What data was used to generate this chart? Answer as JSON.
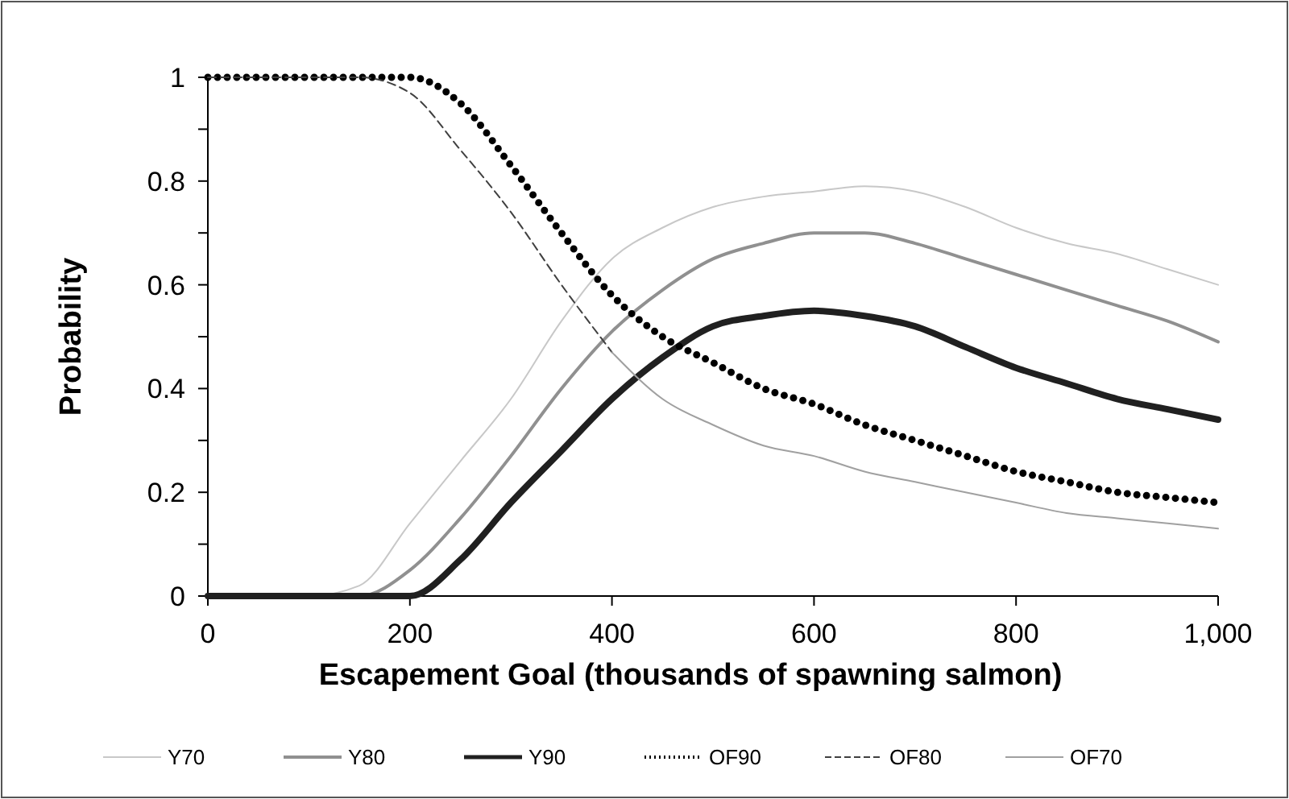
{
  "chart_data": {
    "type": "line",
    "xlabel": "Escapement Goal (thousands of spawning salmon)",
    "ylabel": "Probability",
    "x": [
      0,
      50,
      100,
      150,
      200,
      250,
      300,
      350,
      400,
      450,
      500,
      550,
      600,
      650,
      700,
      750,
      800,
      850,
      900,
      950,
      1000
    ],
    "series": [
      {
        "name": "Y70",
        "color": "#c8c8c8",
        "line_style": "solid",
        "values": [
          0,
          0,
          0,
          0.02,
          0.14,
          0.26,
          0.38,
          0.53,
          0.65,
          0.71,
          0.75,
          0.77,
          0.78,
          0.79,
          0.78,
          0.75,
          0.71,
          0.68,
          0.66,
          0.63,
          0.6
        ]
      },
      {
        "name": "Y80",
        "color": "#909090",
        "line_style": "solid",
        "values": [
          0,
          0,
          0,
          0,
          0.05,
          0.15,
          0.27,
          0.4,
          0.51,
          0.59,
          0.65,
          0.68,
          0.7,
          0.7,
          0.68,
          0.65,
          0.62,
          0.59,
          0.56,
          0.53,
          0.49
        ]
      },
      {
        "name": "Y90",
        "color": "#202020",
        "line_style": "solid",
        "values": [
          0,
          0,
          0,
          0,
          0,
          0.07,
          0.18,
          0.28,
          0.38,
          0.46,
          0.52,
          0.54,
          0.55,
          0.54,
          0.52,
          0.48,
          0.44,
          0.41,
          0.38,
          0.36,
          0.34
        ]
      },
      {
        "name": "OF90",
        "color": "#000000",
        "line_style": "dotted",
        "values": [
          1,
          1,
          1,
          1,
          1,
          0.95,
          0.83,
          0.7,
          0.58,
          0.5,
          0.45,
          0.4,
          0.37,
          0.33,
          0.3,
          0.27,
          0.24,
          0.22,
          0.2,
          0.19,
          0.18
        ]
      },
      {
        "name": "OF80",
        "color": "#404040",
        "line_style": "dashed",
        "values": [
          1,
          1,
          1,
          1,
          0.97,
          0.86,
          0.74,
          0.6,
          0.47,
          null,
          null,
          null,
          null,
          null,
          null,
          null,
          null,
          null,
          null,
          null,
          null
        ]
      },
      {
        "name": "OF70",
        "color": "#a0a0a0",
        "line_style": "solid",
        "values": [
          null,
          null,
          null,
          null,
          null,
          null,
          null,
          null,
          0.47,
          0.38,
          0.33,
          0.29,
          0.27,
          0.24,
          0.22,
          0.2,
          0.18,
          0.16,
          0.15,
          0.14,
          0.13
        ]
      }
    ],
    "xlim": [
      0,
      1000
    ],
    "xticks": [
      0,
      200,
      400,
      600,
      800,
      {
        "value": 1000,
        "label": "1,000"
      }
    ],
    "ylim": [
      0,
      1
    ],
    "yticks": [
      0,
      {
        "value": 0.1,
        "label": null
      },
      0.2,
      {
        "value": 0.3,
        "label": null
      },
      0.4,
      {
        "value": 0.5,
        "label": null
      },
      0.6,
      {
        "value": 0.7,
        "label": null
      },
      0.8,
      {
        "value": 0.9,
        "label": null
      },
      1
    ],
    "grid": false,
    "legend": "bottom",
    "marker": "none"
  }
}
